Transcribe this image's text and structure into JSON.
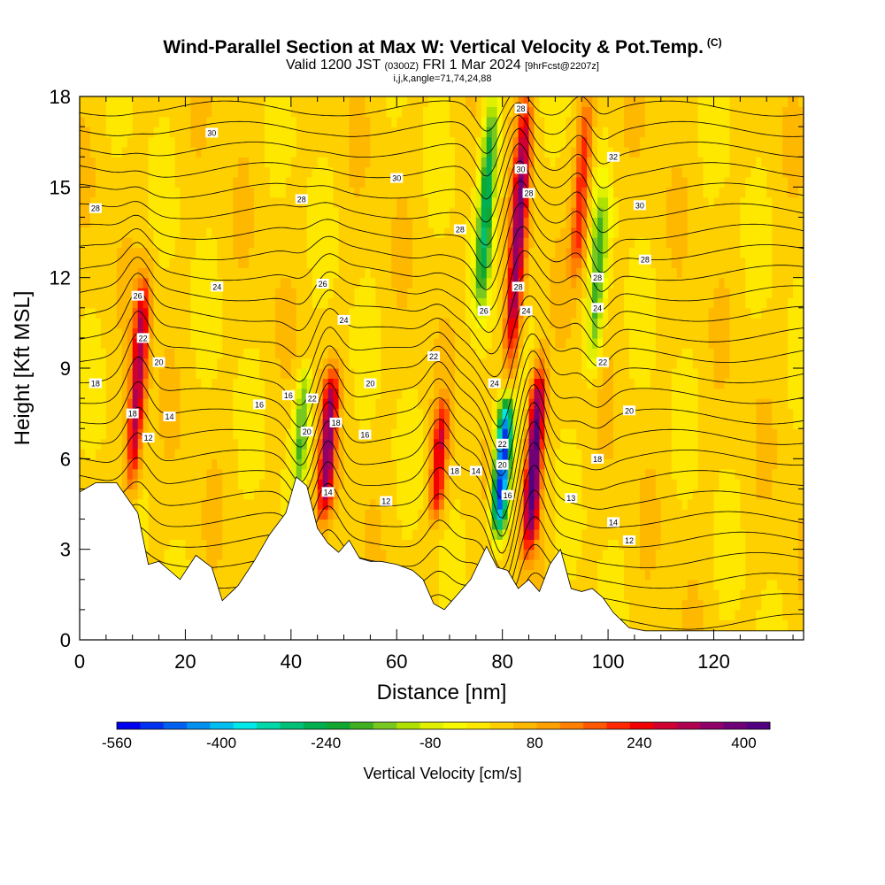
{
  "title": {
    "line1": "Wind-Parallel Section at Max W: Vertical Velocity & Pot.Temp.",
    "copyright": "(C)",
    "line2_main": "Valid 1200 JST",
    "line2_utc": "(0300Z)",
    "line2_date": "FRI 1 Mar 2024",
    "line2_fcst": "[9hrFcst@2207z]",
    "line3": "i,j,k,angle=71,74,24,88"
  },
  "colors": {
    "terrain": "#ffffff",
    "contour": "#000000",
    "palette": [
      "#0000ee",
      "#0030f0",
      "#0060f0",
      "#0090f0",
      "#00bff0",
      "#00e8e8",
      "#00d8a8",
      "#00c078",
      "#00b050",
      "#10a830",
      "#40b020",
      "#78c820",
      "#b0e000",
      "#e0f000",
      "#f8f800",
      "#ffe800",
      "#ffd000",
      "#ffb800",
      "#ffa000",
      "#ff8000",
      "#ff5800",
      "#ff2800",
      "#f00000",
      "#d00030",
      "#b00050",
      "#900068",
      "#700078",
      "#500080"
    ]
  },
  "chart_data": {
    "type": "heatmap",
    "xlabel": "Distance [nm]",
    "ylabel": "Height [Kft MSL]",
    "xlim": [
      0,
      137
    ],
    "ylim": [
      0,
      18
    ],
    "xticks": [
      0,
      20,
      40,
      60,
      80,
      100,
      120
    ],
    "yticks": [
      0,
      3,
      6,
      9,
      12,
      15,
      18
    ],
    "field": "Vertical Velocity",
    "colorbar": {
      "label": "Vertical Velocity [cm/s]",
      "range": [
        -560,
        440
      ],
      "tick_labels": [
        "-560",
        "-400",
        "-240",
        "-80",
        "80",
        "240",
        "400"
      ],
      "tick_values": [
        -560,
        -400,
        -240,
        -80,
        80,
        240,
        400
      ]
    },
    "updrafts": [
      {
        "x": 11,
        "y_range": [
          5,
          12
        ],
        "peak": 300
      },
      {
        "x": 47,
        "y_range": [
          4,
          9
        ],
        "peak": 320
      },
      {
        "x": 68,
        "y_range": [
          4,
          8
        ],
        "peak": 240
      },
      {
        "x": 83,
        "y_range": [
          9,
          18
        ],
        "peak": 320
      },
      {
        "x": 86,
        "y_range": [
          3,
          9
        ],
        "peak": 420
      },
      {
        "x": 95,
        "y_range": [
          12,
          18
        ],
        "peak": 200
      }
    ],
    "downdrafts": [
      {
        "x": 42,
        "y_range": [
          5,
          9
        ],
        "peak": -200
      },
      {
        "x": 77,
        "y_range": [
          11,
          18
        ],
        "peak": -280
      },
      {
        "x": 80,
        "y_range": [
          3.5,
          8
        ],
        "peak": -560
      },
      {
        "x": 98,
        "y_range": [
          9,
          15
        ],
        "peak": -200
      }
    ],
    "terrain": {
      "x": [
        0,
        3,
        7,
        9,
        11,
        13,
        15,
        17,
        19,
        22,
        25,
        27,
        30,
        33,
        36,
        39,
        41,
        43,
        45,
        47,
        49,
        51,
        53,
        55,
        57,
        60,
        63,
        65,
        67,
        69,
        71,
        74,
        77,
        79,
        81,
        83,
        85,
        87,
        89,
        91,
        93,
        95,
        97,
        99,
        101,
        104,
        107,
        110,
        115,
        120,
        125,
        130,
        137
      ],
      "y": [
        4.9,
        5.2,
        5.2,
        4.7,
        4.2,
        2.5,
        2.6,
        2.3,
        2.0,
        2.8,
        2.4,
        1.3,
        1.8,
        2.6,
        3.5,
        4.2,
        5.4,
        5.1,
        3.7,
        3.2,
        2.9,
        3.3,
        2.7,
        2.6,
        2.6,
        2.5,
        2.3,
        2.0,
        1.2,
        1.0,
        1.4,
        2.0,
        3.1,
        2.4,
        2.3,
        1.7,
        2.0,
        1.6,
        2.5,
        3.0,
        1.7,
        1.6,
        1.7,
        1.4,
        0.9,
        0.4,
        0.3,
        0.3,
        0.3,
        0.3,
        0.3,
        0.3,
        0.3
      ]
    },
    "contour_labels": [
      {
        "text": "30",
        "x": 25,
        "y": 16.8
      },
      {
        "text": "28",
        "x": 3,
        "y": 14.3
      },
      {
        "text": "28",
        "x": 42,
        "y": 14.6
      },
      {
        "text": "30",
        "x": 60,
        "y": 15.3
      },
      {
        "text": "28",
        "x": 72,
        "y": 13.6
      },
      {
        "text": "28",
        "x": 83.5,
        "y": 17.6
      },
      {
        "text": "30",
        "x": 83.5,
        "y": 15.6
      },
      {
        "text": "28",
        "x": 85,
        "y": 14.8
      },
      {
        "text": "32",
        "x": 101,
        "y": 16.0
      },
      {
        "text": "30",
        "x": 106,
        "y": 14.4
      },
      {
        "text": "28",
        "x": 107,
        "y": 12.6
      },
      {
        "text": "26",
        "x": 11,
        "y": 11.4
      },
      {
        "text": "24",
        "x": 26,
        "y": 11.7
      },
      {
        "text": "26",
        "x": 46,
        "y": 11.8
      },
      {
        "text": "28",
        "x": 83,
        "y": 11.7
      },
      {
        "text": "26",
        "x": 76.5,
        "y": 10.9
      },
      {
        "text": "24",
        "x": 84.5,
        "y": 10.9
      },
      {
        "text": "28",
        "x": 98,
        "y": 12.0
      },
      {
        "text": "24",
        "x": 98,
        "y": 11.0
      },
      {
        "text": "22",
        "x": 12,
        "y": 10.0
      },
      {
        "text": "24",
        "x": 50,
        "y": 10.6
      },
      {
        "text": "22",
        "x": 67,
        "y": 9.4
      },
      {
        "text": "22",
        "x": 99,
        "y": 9.2
      },
      {
        "text": "20",
        "x": 15,
        "y": 9.2
      },
      {
        "text": "18",
        "x": 3,
        "y": 8.5
      },
      {
        "text": "24",
        "x": 78.5,
        "y": 8.5
      },
      {
        "text": "20",
        "x": 55,
        "y": 8.5
      },
      {
        "text": "16",
        "x": 34,
        "y": 7.8
      },
      {
        "text": "16",
        "x": 39.5,
        "y": 8.1
      },
      {
        "text": "22",
        "x": 44,
        "y": 8.0
      },
      {
        "text": "20",
        "x": 104,
        "y": 7.6
      },
      {
        "text": "18",
        "x": 10,
        "y": 7.5
      },
      {
        "text": "14",
        "x": 17,
        "y": 7.4
      },
      {
        "text": "18",
        "x": 48.5,
        "y": 7.2
      },
      {
        "text": "20",
        "x": 43,
        "y": 6.9
      },
      {
        "text": "16",
        "x": 54,
        "y": 6.8
      },
      {
        "text": "12",
        "x": 13,
        "y": 6.7
      },
      {
        "text": "22",
        "x": 80,
        "y": 6.5
      },
      {
        "text": "18",
        "x": 98,
        "y": 6.0
      },
      {
        "text": "20",
        "x": 80,
        "y": 5.8
      },
      {
        "text": "18",
        "x": 71,
        "y": 5.6
      },
      {
        "text": "14",
        "x": 75,
        "y": 5.6
      },
      {
        "text": "14",
        "x": 47,
        "y": 4.9
      },
      {
        "text": "16",
        "x": 81,
        "y": 4.8
      },
      {
        "text": "12",
        "x": 58,
        "y": 4.6
      },
      {
        "text": "13",
        "x": 93,
        "y": 4.7
      },
      {
        "text": "14",
        "x": 101,
        "y": 3.9
      },
      {
        "text": "12",
        "x": 104,
        "y": 3.3
      }
    ]
  }
}
